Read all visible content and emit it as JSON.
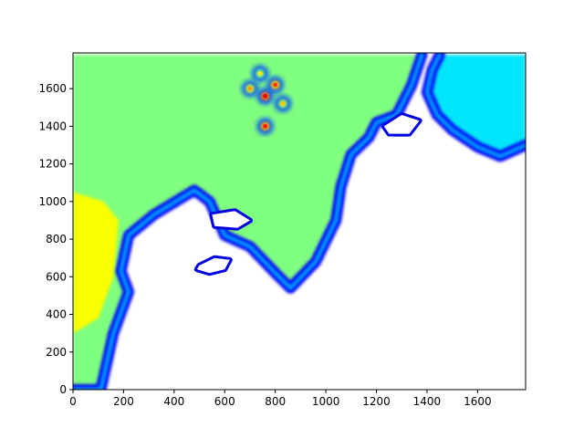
{
  "chart_data": {
    "type": "heatmap",
    "title": "",
    "xlabel": "",
    "ylabel": "",
    "xlim": [
      0,
      1790
    ],
    "ylim": [
      0,
      1790
    ],
    "x_ticks": [
      0,
      200,
      400,
      600,
      800,
      1000,
      1200,
      1400,
      1600
    ],
    "y_ticks": [
      0,
      200,
      400,
      600,
      800,
      1000,
      1200,
      1400,
      1600
    ],
    "colormap": "jet",
    "colormap_stops": [
      "#00007f",
      "#0000ff",
      "#007fff",
      "#00e5ff",
      "#7fff7f",
      "#ffff00",
      "#ff7f00",
      "#ff0000",
      "#7f0000"
    ],
    "masked_color": "#ffffff",
    "grid": false,
    "regions": [
      {
        "name": "main-water-body",
        "level": 0.5,
        "polygon": [
          [
            0,
            0
          ],
          [
            110,
            0
          ],
          [
            160,
            300
          ],
          [
            220,
            520
          ],
          [
            190,
            630
          ],
          [
            220,
            820
          ],
          [
            320,
            930
          ],
          [
            480,
            1060
          ],
          [
            540,
            1000
          ],
          [
            600,
            820
          ],
          [
            700,
            760
          ],
          [
            800,
            620
          ],
          [
            860,
            540
          ],
          [
            960,
            680
          ],
          [
            1040,
            900
          ],
          [
            1060,
            1080
          ],
          [
            1100,
            1250
          ],
          [
            1170,
            1340
          ],
          [
            1200,
            1420
          ],
          [
            1280,
            1460
          ],
          [
            1340,
            1620
          ],
          [
            1380,
            1780
          ],
          [
            0,
            1780
          ]
        ]
      },
      {
        "name": "east-water-body",
        "level": 0.38,
        "polygon": [
          [
            1450,
            1780
          ],
          [
            1790,
            1780
          ],
          [
            1790,
            1300
          ],
          [
            1690,
            1240
          ],
          [
            1600,
            1290
          ],
          [
            1500,
            1380
          ],
          [
            1440,
            1460
          ],
          [
            1400,
            1580
          ],
          [
            1420,
            1700
          ]
        ]
      },
      {
        "name": "southwest-warm-zone",
        "level": 0.62,
        "polygon": [
          [
            0,
            300
          ],
          [
            100,
            380
          ],
          [
            160,
            600
          ],
          [
            180,
            900
          ],
          [
            120,
            1000
          ],
          [
            0,
            1050
          ]
        ]
      }
    ],
    "hotspots": [
      {
        "x": 760,
        "y": 1560,
        "level": 0.9
      },
      {
        "x": 800,
        "y": 1620,
        "level": 0.82
      },
      {
        "x": 700,
        "y": 1600,
        "level": 0.72
      },
      {
        "x": 760,
        "y": 1400,
        "level": 0.85
      },
      {
        "x": 830,
        "y": 1520,
        "level": 0.68
      },
      {
        "x": 740,
        "y": 1680,
        "level": 0.65
      }
    ],
    "coast_bands": [
      [
        [
          0,
          0
        ],
        [
          110,
          0
        ],
        [
          160,
          300
        ],
        [
          220,
          520
        ],
        [
          190,
          630
        ],
        [
          220,
          820
        ],
        [
          320,
          930
        ],
        [
          480,
          1060
        ],
        [
          540,
          1000
        ],
        [
          600,
          820
        ],
        [
          700,
          760
        ],
        [
          800,
          620
        ],
        [
          860,
          540
        ],
        [
          960,
          680
        ],
        [
          1040,
          900
        ],
        [
          1060,
          1080
        ],
        [
          1100,
          1250
        ],
        [
          1170,
          1340
        ],
        [
          1200,
          1420
        ],
        [
          1280,
          1460
        ],
        [
          1340,
          1620
        ],
        [
          1380,
          1780
        ]
      ],
      [
        [
          1450,
          1780
        ],
        [
          1420,
          1700
        ],
        [
          1400,
          1580
        ],
        [
          1440,
          1460
        ],
        [
          1500,
          1380
        ],
        [
          1600,
          1290
        ],
        [
          1690,
          1240
        ],
        [
          1790,
          1300
        ]
      ]
    ],
    "islands": [
      {
        "name": "island-west",
        "polygon": [
          [
            500,
            660
          ],
          [
            560,
            700
          ],
          [
            620,
            690
          ],
          [
            600,
            640
          ],
          [
            540,
            620
          ],
          [
            490,
            640
          ]
        ]
      },
      {
        "name": "island-middle",
        "polygon": [
          [
            550,
            930
          ],
          [
            640,
            950
          ],
          [
            700,
            900
          ],
          [
            650,
            860
          ],
          [
            560,
            870
          ]
        ]
      },
      {
        "name": "island-north",
        "polygon": [
          [
            1230,
            1400
          ],
          [
            1300,
            1460
          ],
          [
            1370,
            1430
          ],
          [
            1330,
            1360
          ],
          [
            1250,
            1360
          ]
        ]
      }
    ]
  }
}
